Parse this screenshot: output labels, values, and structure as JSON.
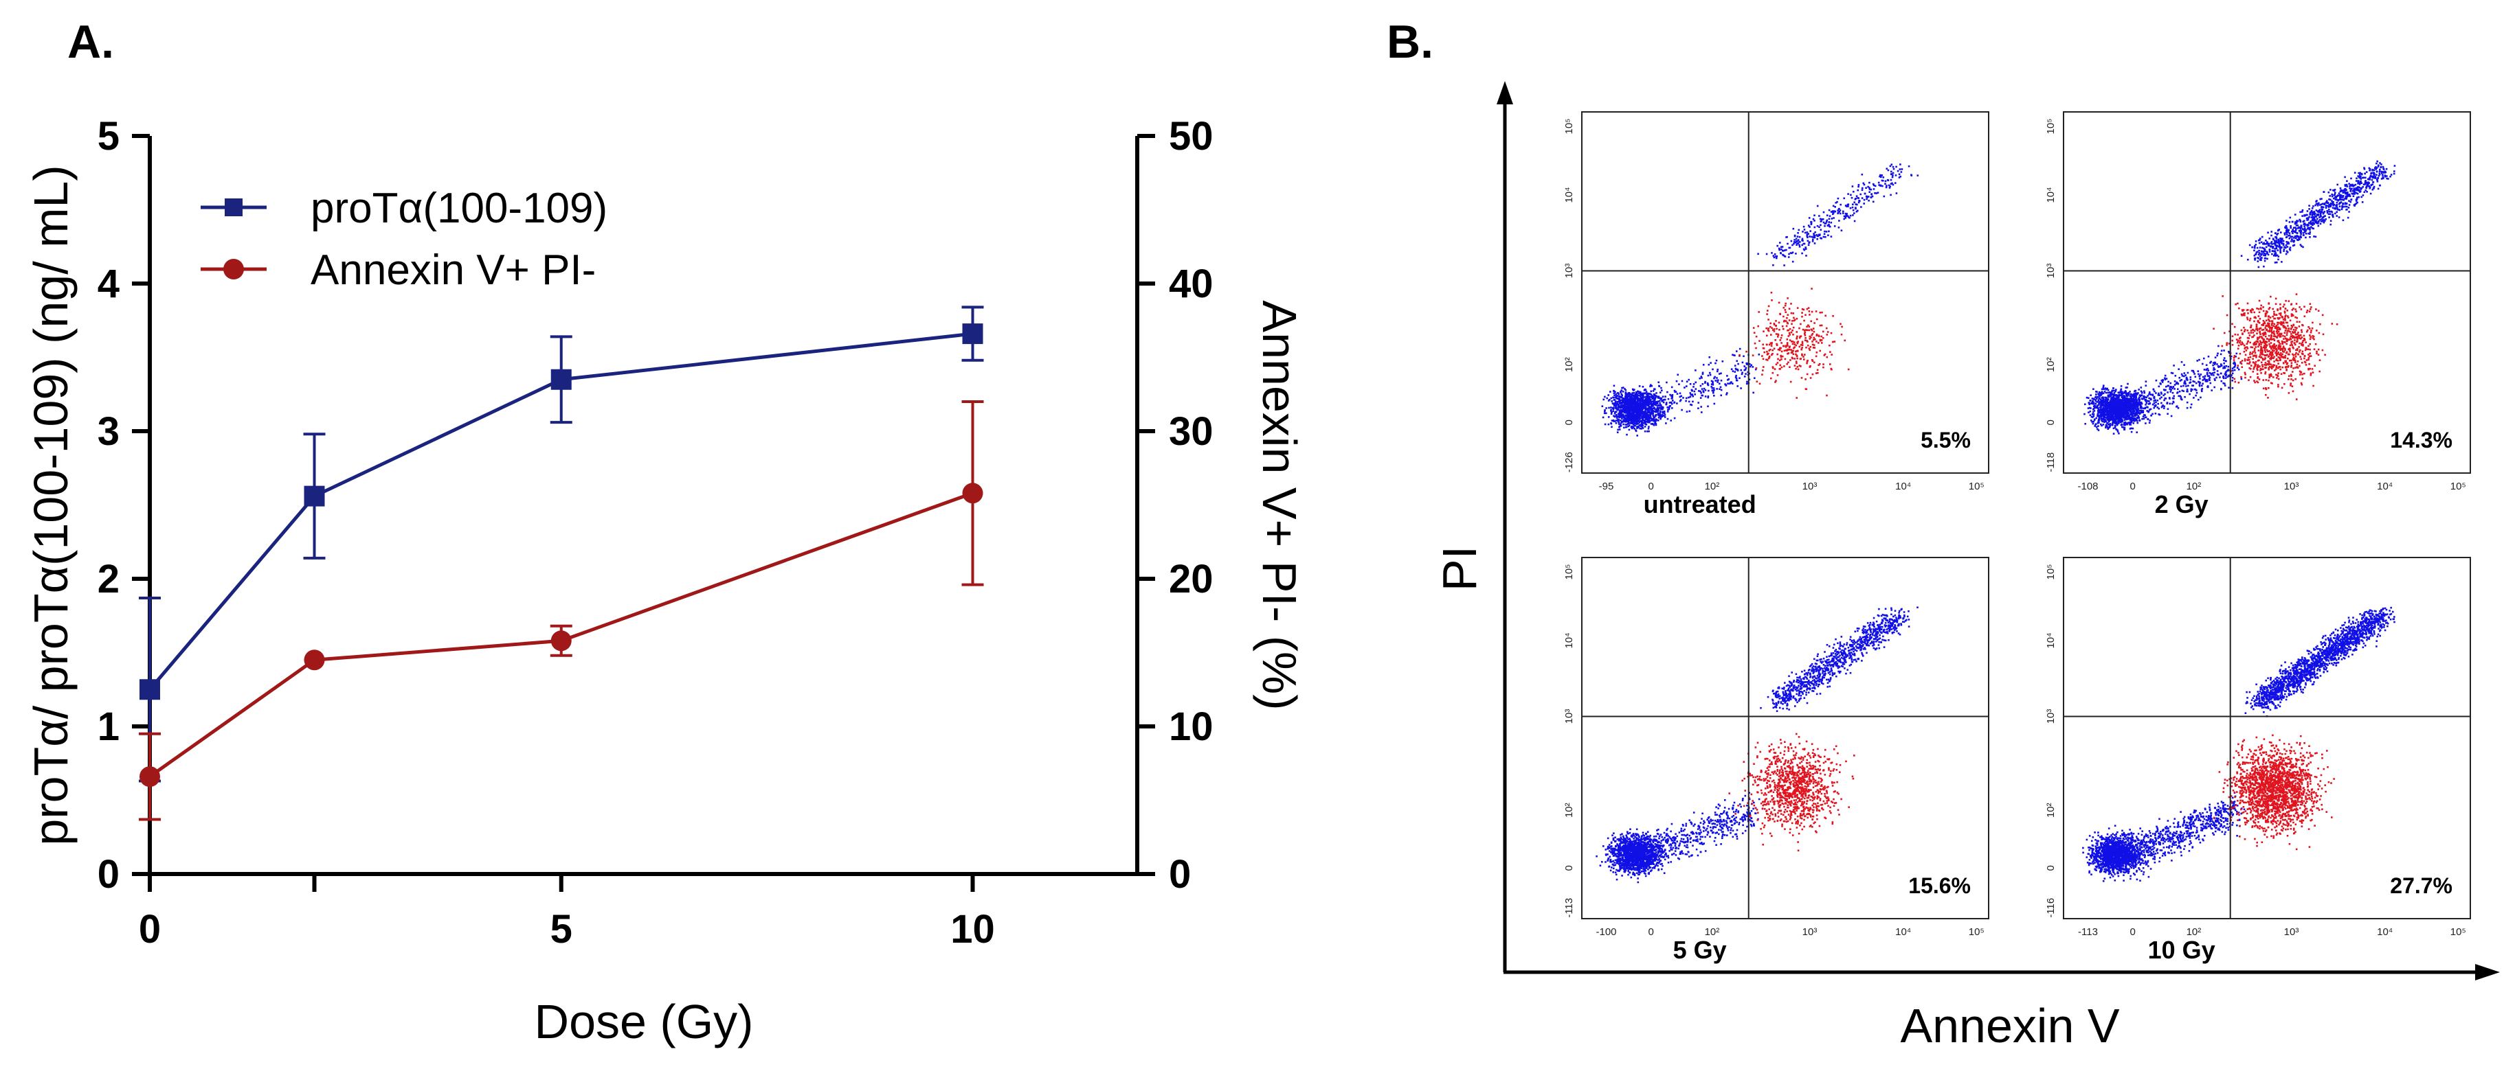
{
  "figure": {
    "panel_a_label": "A.",
    "panel_b_label": "B."
  },
  "chart_data": [
    {
      "type": "line",
      "panel": "A.",
      "xlabel": "Dose (Gy)",
      "x_ticks": [
        "0",
        "5",
        "10"
      ],
      "xlim": [
        0,
        12
      ],
      "ylabel_left": "proTα/ proTα(100-109) (ng/ mL)",
      "ylabel_right": "Annexin V+ PI- (%)",
      "y_left_ticks": [
        "0",
        "1",
        "2",
        "3",
        "4",
        "5"
      ],
      "y_right_ticks": [
        "0",
        "10",
        "20",
        "30",
        "40",
        "50"
      ],
      "ylim_left": [
        0,
        5
      ],
      "ylim_right": [
        0,
        50
      ],
      "x": [
        0,
        2,
        5,
        10
      ],
      "legend_position": "top-left",
      "series": [
        {
          "name": "proTα(100-109)",
          "axis": "left",
          "marker": "square",
          "color": "#1a237e",
          "values": [
            1.25,
            2.56,
            3.35,
            3.66
          ],
          "error": [
            0.62,
            0.42,
            0.29,
            0.18
          ]
        },
        {
          "name": "Annexin V+ PI-",
          "axis": "right",
          "marker": "circle",
          "color": "#a01818",
          "values": [
            6.6,
            14.5,
            15.8,
            25.8
          ],
          "error": [
            2.9,
            0,
            1.0,
            6.2
          ]
        }
      ]
    },
    {
      "type": "scatter",
      "panel": "B.",
      "xlabel": "Annexin V",
      "ylabel": "PI",
      "x_tick_labels": [
        "0",
        "10²",
        "10³",
        "10⁴",
        "10⁵"
      ],
      "y_tick_labels": [
        "0",
        "10²",
        "10³",
        "10⁴",
        "10⁵"
      ],
      "colors": {
        "annexin_pos_pi_neg": "#e0141e",
        "other": "#1010e6"
      },
      "plots": [
        {
          "label": "untreated",
          "percent": "5.5%",
          "x_min_label": "-95",
          "y_min_label": "-126",
          "fraction": 0.055
        },
        {
          "label": "2 Gy",
          "percent": "14.3%",
          "x_min_label": "-108",
          "y_min_label": "-118",
          "fraction": 0.143
        },
        {
          "label": "5 Gy",
          "percent": "15.6%",
          "x_min_label": "-100",
          "y_min_label": "-113",
          "fraction": 0.156
        },
        {
          "label": "10 Gy",
          "percent": "27.7%",
          "x_min_label": "-113",
          "y_min_label": "-116",
          "fraction": 0.277
        }
      ]
    }
  ]
}
